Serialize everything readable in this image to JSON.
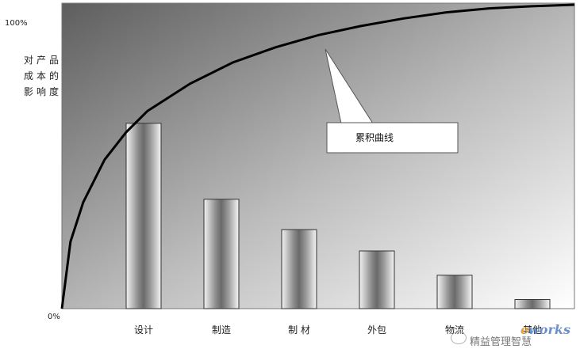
{
  "chart_data": {
    "type": "bar",
    "categories": [
      "设计",
      "制造",
      "制 材",
      "外包",
      "物流",
      "其他"
    ],
    "values": [
      61,
      36,
      26,
      19,
      11,
      3
    ],
    "ylabel": "对产品成本的影响度",
    "ytick_labels": [
      "100%",
      "0%"
    ],
    "ylim": [
      0,
      100
    ],
    "curve": {
      "label": "累积曲线",
      "x": [
        0,
        0.1,
        0.25,
        0.5,
        0.75,
        1,
        1.5,
        2,
        2.5,
        3,
        3.5,
        4,
        4.5,
        5,
        5.5,
        6
      ],
      "y": [
        0,
        22,
        35,
        49,
        58,
        65,
        74,
        81,
        86,
        90,
        93,
        95.5,
        97.5,
        98.8,
        99.5,
        100
      ]
    },
    "grid": false,
    "background": "gradient gray"
  },
  "watermark": {
    "logo_prefix": "e",
    "logo_text": "works",
    "caption": "精益管理智慧"
  },
  "colors": {
    "bg_dark": "#6e6e6e",
    "bg_light": "#ffffff",
    "curve": "#000000"
  }
}
